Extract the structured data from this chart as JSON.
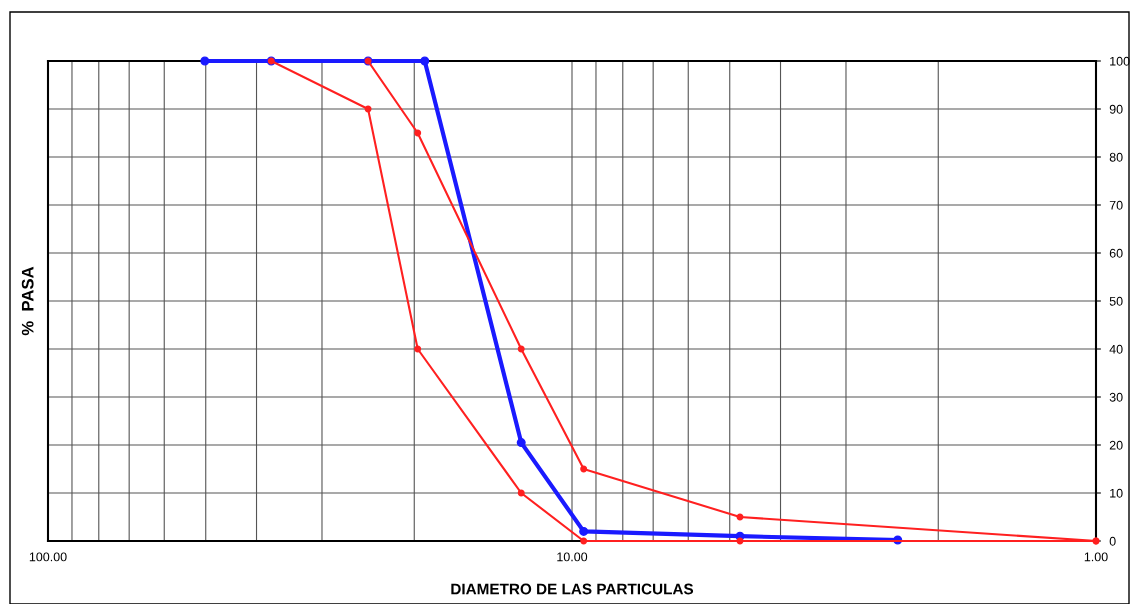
{
  "chart_data": {
    "type": "line",
    "xlabel": "DIAMETRO DE LAS PARTICULAS",
    "ylabel": "%  PASA",
    "log": "x",
    "grid": true,
    "legend": false,
    "marker": "circle",
    "line_style": "solid",
    "tick_labels": "xy2",
    "series": [
      {
        "x": [
          24.5,
          19.7,
          12.5,
          9.5,
          4.78,
          1.0
        ],
        "values": [
          100,
          85,
          40,
          15,
          5,
          0
        ],
        "color": "#ff2020"
      },
      {
        "x": [
          37.5,
          24.5,
          19.7,
          12.5,
          9.5,
          4.78,
          1.0
        ],
        "values": [
          100,
          90,
          40,
          10,
          0,
          0,
          0
        ],
        "color": "#ff2020"
      },
      {
        "x": [
          50.2,
          37.5,
          24.5,
          19.1,
          12.5,
          9.5,
          4.78,
          2.39
        ],
        "values": [
          100,
          100,
          100,
          100,
          20.5,
          2,
          1,
          0.2
        ],
        "color": "#1a1aff"
      }
    ],
    "xlim": [
      100,
      1
    ],
    "xticks": [
      {
        "value": 100,
        "label": "100.00"
      },
      {
        "value": 90,
        "label": null
      },
      {
        "value": 80,
        "label": null
      },
      {
        "value": 70,
        "label": null
      },
      {
        "value": 60,
        "label": null
      },
      {
        "value": 50,
        "label": null
      },
      {
        "value": 40,
        "label": null
      },
      {
        "value": 30,
        "label": null
      },
      {
        "value": 20,
        "label": null
      },
      {
        "value": 10,
        "label": "10.00"
      },
      {
        "value": 9,
        "label": null
      },
      {
        "value": 8,
        "label": null
      },
      {
        "value": 7,
        "label": null
      },
      {
        "value": 6,
        "label": null
      },
      {
        "value": 5,
        "label": null
      },
      {
        "value": 4,
        "label": null
      },
      {
        "value": 3,
        "label": null
      },
      {
        "value": 2,
        "label": null
      },
      {
        "value": 1,
        "label": "1.00"
      }
    ],
    "ylim": [
      0,
      100
    ],
    "yticks": [
      0,
      10,
      20,
      30,
      40,
      50,
      60,
      70,
      80,
      90,
      100
    ]
  }
}
